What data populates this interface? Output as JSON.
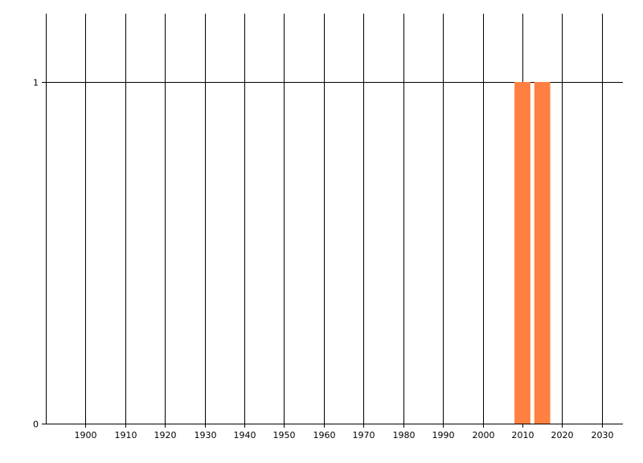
{
  "chart_data": {
    "type": "bar",
    "title": "",
    "xlabel": "",
    "ylabel": "",
    "xlim": [
      1890,
      2035.3
    ],
    "ylim": [
      0,
      1.2
    ],
    "x_ticks": [
      "1900",
      "1910",
      "1920",
      "1930",
      "1940",
      "1950",
      "1960",
      "1970",
      "1980",
      "1990",
      "2000",
      "2010",
      "2020",
      "2030"
    ],
    "y_ticks": [
      "0",
      "1"
    ],
    "grid": true,
    "bar_width_years": 4,
    "series": [
      {
        "x": [
          2010,
          2015
        ],
        "values": [
          1,
          1
        ],
        "color": "#ff8040"
      }
    ]
  }
}
